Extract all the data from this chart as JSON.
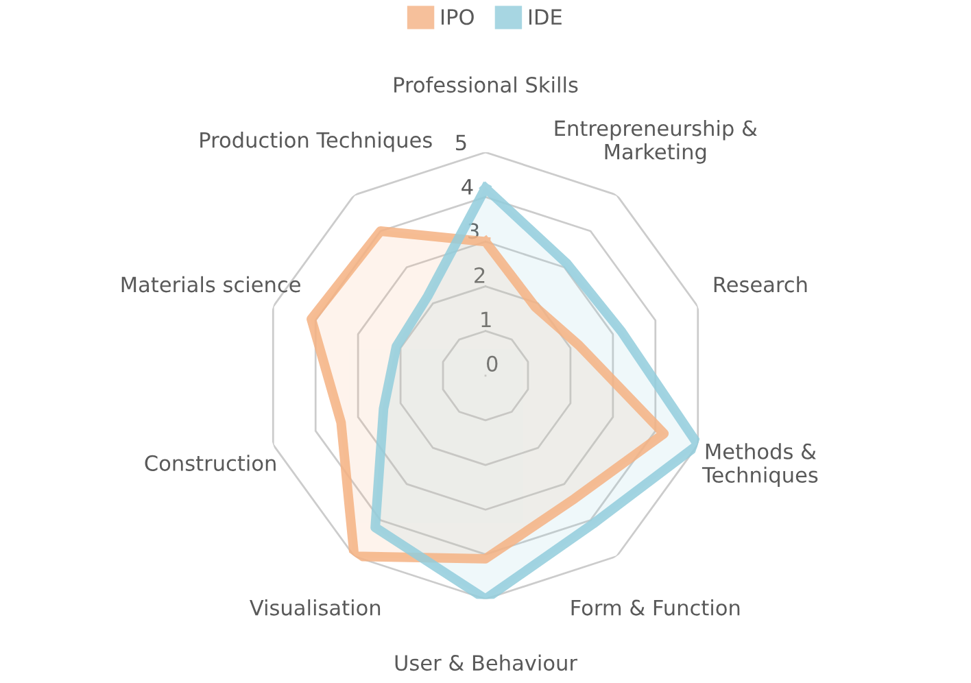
{
  "chart_data": {
    "type": "radar",
    "categories": [
      "Professional Skills",
      "Entrepreneurship &\nMarketing",
      "Research",
      "Methods &\nTechniques",
      "Form & Function",
      "User & Behaviour",
      "Visualisation",
      "Construction",
      "Materials science",
      "Production Techniques"
    ],
    "series": [
      {
        "name": "IPO",
        "color": "#f4b183",
        "values": [
          3.0,
          1.9,
          2.2,
          4.2,
          3.4,
          4.1,
          5.0,
          3.4,
          4.1,
          4.0
        ]
      },
      {
        "name": "IDE",
        "color": "#92cddc",
        "values": [
          4.2,
          3.1,
          3.2,
          5.0,
          4.1,
          5.0,
          4.2,
          2.4,
          2.1,
          2.2
        ]
      }
    ],
    "ylim": [
      0,
      5
    ],
    "yticks": [
      0,
      1,
      2,
      3,
      4,
      5
    ],
    "grid": true,
    "legend": "top",
    "marker": "none",
    "line_style": "solid"
  }
}
